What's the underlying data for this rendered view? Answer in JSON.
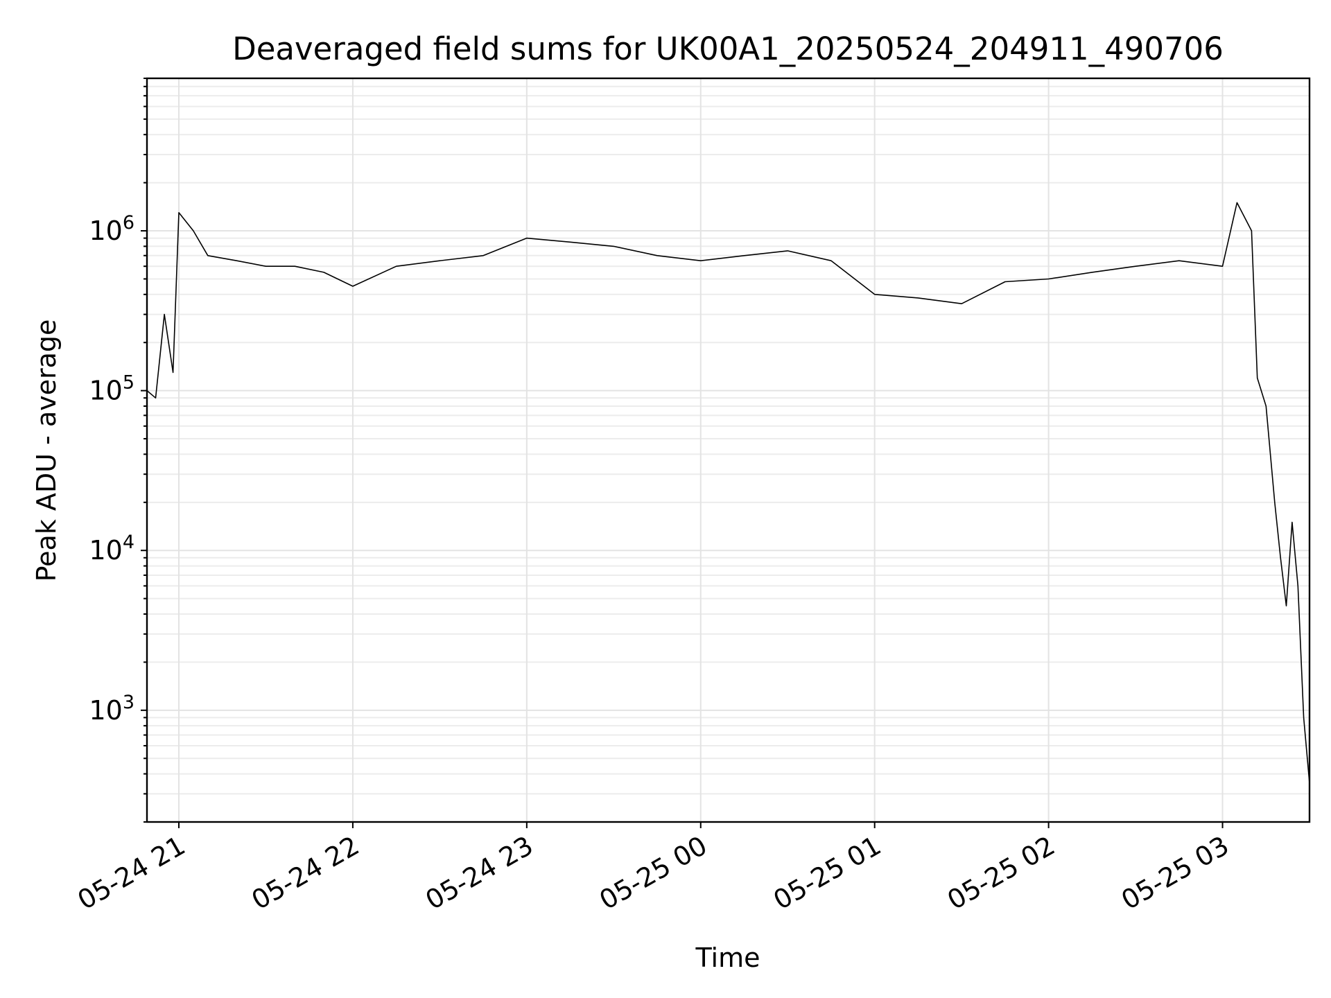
{
  "chart_data": {
    "type": "line",
    "title": "Deaveraged field sums for UK00A1_20250524_204911_490706",
    "xlabel": "Time",
    "ylabel": "Peak ADU - average",
    "yscale": "log",
    "ylim": [
      200,
      9000000
    ],
    "xlim": [
      "2025-05-24 20:49",
      "2025-05-25 03:30"
    ],
    "grid": true,
    "line_color": "#000000",
    "x_ticks": [
      {
        "t": "2025-05-24 21:00",
        "label": "05-24 21"
      },
      {
        "t": "2025-05-24 22:00",
        "label": "05-24 22"
      },
      {
        "t": "2025-05-24 23:00",
        "label": "05-24 23"
      },
      {
        "t": "2025-05-25 00:00",
        "label": "05-25 00"
      },
      {
        "t": "2025-05-25 01:00",
        "label": "05-25 01"
      },
      {
        "t": "2025-05-25 02:00",
        "label": "05-25 02"
      },
      {
        "t": "2025-05-25 03:00",
        "label": "05-25 03"
      }
    ],
    "y_ticks": [
      {
        "value": 1000,
        "base": "10",
        "exp": "3"
      },
      {
        "value": 10000,
        "base": "10",
        "exp": "4"
      },
      {
        "value": 100000,
        "base": "10",
        "exp": "5"
      },
      {
        "value": 1000000,
        "base": "10",
        "exp": "6"
      }
    ],
    "series": [
      {
        "x": [
          "2025-05-24 20:49",
          "2025-05-24 20:52",
          "2025-05-24 20:55",
          "2025-05-24 20:58",
          "2025-05-24 21:00",
          "2025-05-24 21:05",
          "2025-05-24 21:10",
          "2025-05-24 21:20",
          "2025-05-24 21:30",
          "2025-05-24 21:40",
          "2025-05-24 21:50",
          "2025-05-24 22:00",
          "2025-05-24 22:15",
          "2025-05-24 22:30",
          "2025-05-24 22:45",
          "2025-05-24 23:00",
          "2025-05-24 23:15",
          "2025-05-24 23:30",
          "2025-05-24 23:45",
          "2025-05-25 00:00",
          "2025-05-25 00:15",
          "2025-05-25 00:30",
          "2025-05-25 00:45",
          "2025-05-25 01:00",
          "2025-05-25 01:15",
          "2025-05-25 01:30",
          "2025-05-25 01:45",
          "2025-05-25 02:00",
          "2025-05-25 02:15",
          "2025-05-25 02:30",
          "2025-05-25 02:45",
          "2025-05-25 03:00",
          "2025-05-25 03:05",
          "2025-05-25 03:10",
          "2025-05-25 03:12",
          "2025-05-25 03:15",
          "2025-05-25 03:18",
          "2025-05-25 03:20",
          "2025-05-25 03:22",
          "2025-05-25 03:24",
          "2025-05-25 03:26",
          "2025-05-25 03:28",
          "2025-05-25 03:30"
        ],
        "values": [
          100000,
          90000,
          300000,
          130000,
          1300000,
          1000000,
          700000,
          650000,
          600000,
          600000,
          550000,
          450000,
          600000,
          650000,
          700000,
          900000,
          850000,
          800000,
          700000,
          650000,
          700000,
          750000,
          650000,
          400000,
          380000,
          350000,
          480000,
          500000,
          550000,
          600000,
          650000,
          600000,
          1500000,
          1000000,
          120000,
          80000,
          20000,
          9000,
          4500,
          15000,
          6000,
          900,
          350
        ]
      }
    ]
  }
}
